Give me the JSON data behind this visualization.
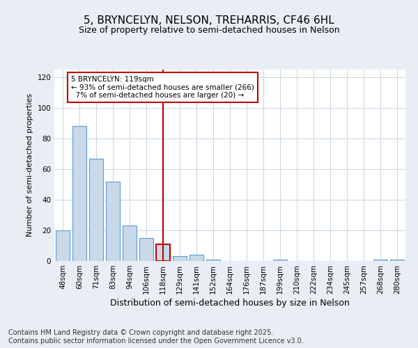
{
  "title": "5, BRYNCELYN, NELSON, TREHARRIS, CF46 6HL",
  "subtitle": "Size of property relative to semi-detached houses in Nelson",
  "xlabel": "Distribution of semi-detached houses by size in Nelson",
  "ylabel": "Number of semi-detached properties",
  "categories": [
    "48sqm",
    "60sqm",
    "71sqm",
    "83sqm",
    "94sqm",
    "106sqm",
    "118sqm",
    "129sqm",
    "141sqm",
    "152sqm",
    "164sqm",
    "176sqm",
    "187sqm",
    "199sqm",
    "210sqm",
    "222sqm",
    "234sqm",
    "245sqm",
    "257sqm",
    "268sqm",
    "280sqm"
  ],
  "values": [
    20,
    88,
    67,
    52,
    23,
    15,
    11,
    3,
    4,
    1,
    0,
    0,
    0,
    1,
    0,
    0,
    0,
    0,
    0,
    1,
    1
  ],
  "bar_color": "#c9d9e8",
  "bar_edge_color": "#5b9bd5",
  "highlight_bar_index": 6,
  "highlight_bar_edge_color": "#c00000",
  "vline_color": "#c00000",
  "annotation_text": "5 BRYNCELYN: 119sqm\n← 93% of semi-detached houses are smaller (266)\n  7% of semi-detached houses are larger (20) →",
  "annotation_box_color": "#c00000",
  "ylim": [
    0,
    125
  ],
  "yticks": [
    0,
    20,
    40,
    60,
    80,
    100,
    120
  ],
  "footer": "Contains HM Land Registry data © Crown copyright and database right 2025.\nContains public sector information licensed under the Open Government Licence v3.0.",
  "bg_color": "#e8eef4",
  "plot_bg_color": "#ffffff",
  "grid_color": "#c8d4e0",
  "title_fontsize": 11,
  "subtitle_fontsize": 9,
  "xlabel_fontsize": 9,
  "ylabel_fontsize": 8,
  "footer_fontsize": 7,
  "tick_fontsize": 7.5
}
